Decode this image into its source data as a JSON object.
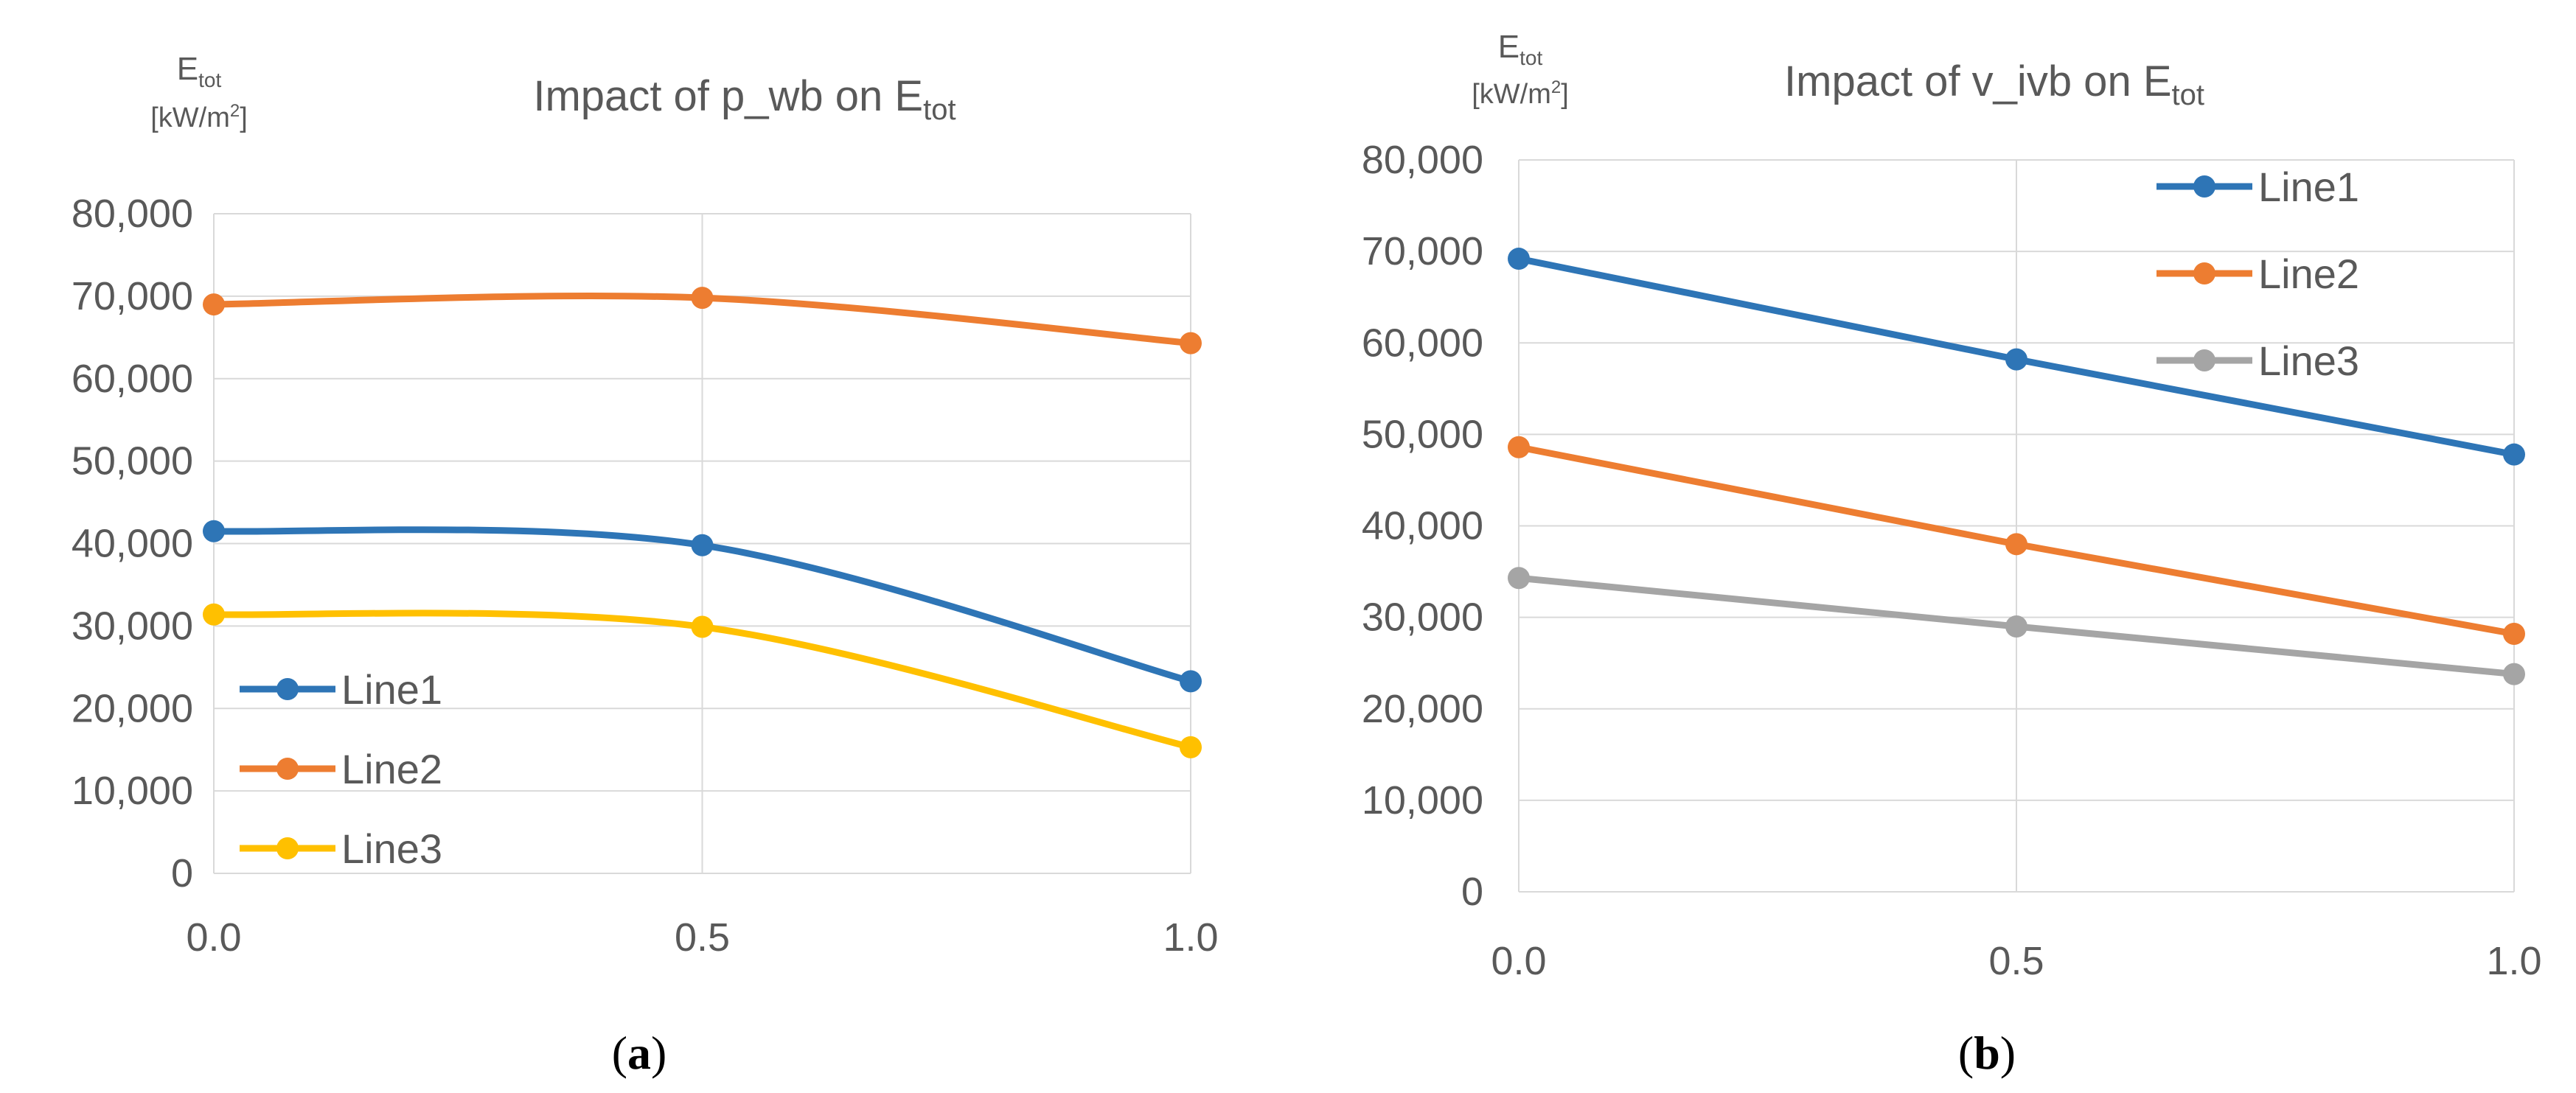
{
  "figure": {
    "panels": [
      {
        "id": "a",
        "caption": "(a)",
        "caption_letter": "a"
      },
      {
        "id": "b",
        "caption": "(b)",
        "caption_letter": "b"
      }
    ]
  },
  "chart_data": [
    {
      "type": "line",
      "smooth": true,
      "title": "Impact of p_wb on E_tot",
      "title_main": "Impact of p_wb on E",
      "title_sub": "tot",
      "ylabel_main": "E",
      "ylabel_sub": "tot",
      "yunit_pre": "[kW/m",
      "yunit_sup": "2",
      "yunit_post": "]",
      "x": [
        0.0,
        0.5,
        1.0
      ],
      "xticks": [
        "0.0",
        "0.5",
        "1.0"
      ],
      "ylim": [
        0,
        80000
      ],
      "yticks": [
        "0",
        "10,000",
        "20,000",
        "30,000",
        "40,000",
        "50,000",
        "60,000",
        "70,000",
        "80,000"
      ],
      "ytick_values": [
        0,
        10000,
        20000,
        30000,
        40000,
        50000,
        60000,
        70000,
        80000
      ],
      "legend_position": "bottom-left",
      "series": [
        {
          "name": "Line1",
          "color": "#2E75B6",
          "values": [
            41500,
            39800,
            23300
          ]
        },
        {
          "name": "Line2",
          "color": "#ED7D31",
          "values": [
            69000,
            69800,
            64300
          ]
        },
        {
          "name": "Line3",
          "color": "#FFC000",
          "values": [
            31400,
            29900,
            15300
          ]
        }
      ]
    },
    {
      "type": "line",
      "smooth": false,
      "title": "Impact of v_ivb on E_tot",
      "title_main": "Impact of v_ivb on E",
      "title_sub": "tot",
      "ylabel_main": "E",
      "ylabel_sub": "tot",
      "yunit_pre": "[kW/m",
      "yunit_sup": "2",
      "yunit_post": "]",
      "x": [
        0.0,
        0.5,
        1.0
      ],
      "xticks": [
        "0.0",
        "0.5",
        "1.0"
      ],
      "ylim": [
        0,
        80000
      ],
      "yticks": [
        "0",
        "10,000",
        "20,000",
        "30,000",
        "40,000",
        "50,000",
        "60,000",
        "70,000",
        "80,000"
      ],
      "ytick_values": [
        0,
        10000,
        20000,
        30000,
        40000,
        50000,
        60000,
        70000,
        80000
      ],
      "legend_position": "top-right",
      "series": [
        {
          "name": "Line1",
          "color": "#2E75B6",
          "values": [
            69200,
            58200,
            47800
          ]
        },
        {
          "name": "Line2",
          "color": "#ED7D31",
          "values": [
            48600,
            38000,
            28200
          ]
        },
        {
          "name": "Line3",
          "color": "#A5A5A5",
          "values": [
            34300,
            29000,
            23800
          ]
        }
      ]
    }
  ]
}
